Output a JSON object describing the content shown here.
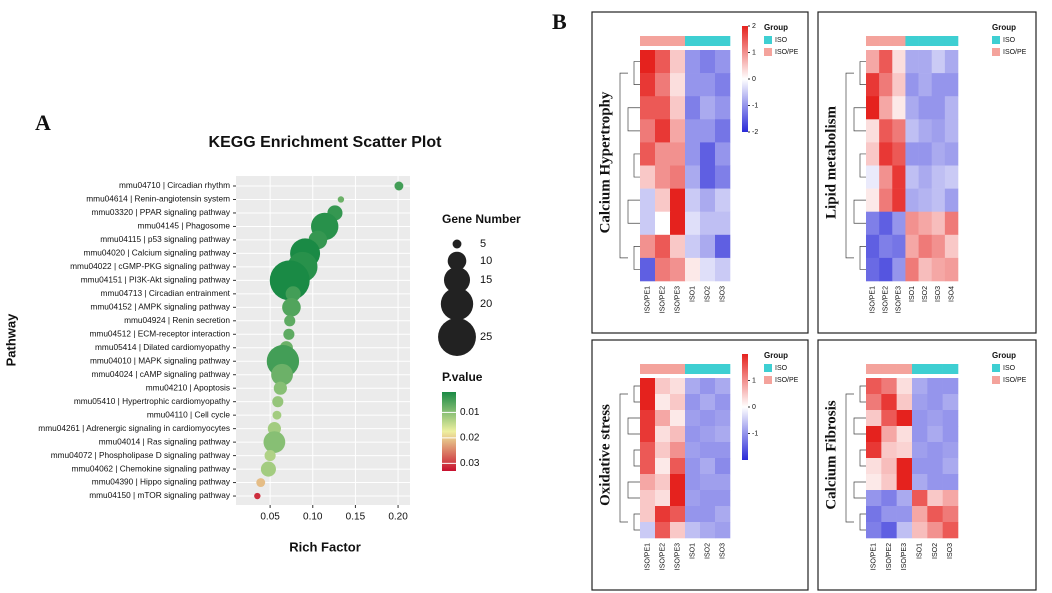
{
  "panel_labels": [
    "A",
    "B"
  ],
  "chart_data": [
    {
      "type": "scatter",
      "title": "KEGG Enrichment Scatter Plot",
      "x_label": "Rich Factor",
      "y_label": "Pathway",
      "categories": [
        "mmu04710 | Circadian rhythm",
        "mmu04614 | Renin-angiotensin system",
        "mmu03320 | PPAR signaling pathway",
        "mmu04145 | Phagosome",
        "mmu04115 | p53 signaling pathway",
        "mmu04020 | Calcium signaling pathway",
        "mmu04022 | cGMP-PKG signaling pathway",
        "mmu04151 | PI3K-Akt signaling pathway",
        "mmu04713 | Circadian entrainment",
        "mmu04152 | AMPK signaling pathway",
        "mmu04924 | Renin secretion",
        "mmu04512 | ECM-receptor interaction",
        "mmu05414 | Dilated cardiomyopathy",
        "mmu04010 | MAPK signaling pathway",
        "mmu04024 | cAMP signaling pathway",
        "mmu04210 | Apoptosis",
        "mmu05410 | Hypertrophic cardiomyopathy",
        "mmu04110 | Cell cycle",
        "mmu04261 | Adrenergic signaling in cardiomyocytes",
        "mmu04014 | Ras signaling pathway",
        "mmu04072 | Phospholipase D signaling pathway",
        "mmu04062 | Chemokine signaling pathway",
        "mmu04390 | Hippo signaling pathway",
        "mmu04150 | mTOR signaling pathway"
      ],
      "x": [
        0.201,
        0.133,
        0.126,
        0.114,
        0.106,
        0.091,
        0.088,
        0.073,
        0.077,
        0.075,
        0.073,
        0.072,
        0.069,
        0.065,
        0.064,
        0.062,
        0.059,
        0.058,
        0.055,
        0.055,
        0.05,
        0.048,
        0.039,
        0.035
      ],
      "sizes": [
        5,
        4,
        8,
        16,
        10,
        18,
        18,
        27,
        8,
        10,
        6,
        6,
        7,
        20,
        12,
        7,
        6,
        5,
        7,
        12,
        6,
        8,
        5,
        4
      ],
      "pvalues": [
        0.005,
        0.008,
        0.004,
        0.003,
        0.004,
        0.002,
        0.003,
        0.002,
        0.005,
        0.006,
        0.007,
        0.007,
        0.008,
        0.005,
        0.008,
        0.01,
        0.011,
        0.012,
        0.012,
        0.01,
        0.013,
        0.012,
        0.021,
        0.031
      ],
      "xlim": [
        0.01,
        0.214
      ],
      "xticks": [
        0.05,
        {
          "value": 0.1,
          "label": "0.10"
        },
        0.15,
        {
          "value": 0.2,
          "label": "0.20"
        }
      ],
      "size_title": "Gene Number",
      "size_ticks": [
        5,
        10,
        15,
        20,
        25
      ],
      "color_title": "P.value",
      "clim": [
        0.002,
        0.033
      ],
      "cticks": [
        0.01,
        0.02,
        0.03
      ],
      "colors": [
        "#1a8a45",
        "#eef0a0",
        "#c8102e"
      ],
      "point_color": "#222222",
      "grid": true
    },
    {
      "type": "heatmap",
      "title": "Calcium Hypertrophy",
      "group_title": "Group",
      "groups": [
        {
          "name": "ISO/PE",
          "color": "#f4a39c",
          "columns": [
            "ISO/PE1",
            "ISO/PE2",
            "ISO/PE3"
          ]
        },
        {
          "name": "ISO",
          "color": "#3ecfd2",
          "columns": [
            "ISO1",
            "ISO2",
            "ISO3"
          ]
        }
      ],
      "values": [
        [
          2,
          1.5,
          0.5,
          -1,
          -1.2,
          -1
        ],
        [
          1.8,
          1.2,
          0.3,
          -1,
          -1,
          -1.2
        ],
        [
          1.5,
          1.5,
          0.5,
          -1.2,
          -0.8,
          -1
        ],
        [
          1.2,
          1.8,
          0.8,
          -1,
          -1,
          -1.3
        ],
        [
          1.5,
          1,
          1,
          -1,
          -1.5,
          -1
        ],
        [
          0.5,
          1,
          1.2,
          -0.8,
          -1.5,
          -1.2
        ],
        [
          -0.5,
          0.5,
          2,
          -0.5,
          -0.8,
          -0.5
        ],
        [
          -0.5,
          0,
          2,
          -0.3,
          -0.6,
          -0.6
        ],
        [
          1,
          1.5,
          0.5,
          -0.5,
          -0.8,
          -1.5
        ],
        [
          -1.5,
          1.2,
          1,
          0.2,
          -0.3,
          -0.5
        ]
      ],
      "zlim": [
        -2,
        2
      ],
      "zticks": [
        2,
        1,
        0,
        -1,
        -2
      ],
      "colors": [
        "#2a2ad8",
        "#ffffff",
        "#e5221e"
      ]
    },
    {
      "type": "heatmap",
      "title": "Lipid metabolism",
      "group_title": "Group",
      "groups": [
        {
          "name": "ISO/PE",
          "color": "#f4a39c",
          "columns": [
            "ISO/PE1",
            "ISO/PE2",
            "ISO/PE3"
          ]
        },
        {
          "name": "ISO",
          "color": "#3ecfd2",
          "columns": [
            "ISO1",
            "ISO2",
            "ISO3",
            "ISO4"
          ]
        }
      ],
      "values": [
        [
          0.8,
          1.5,
          0.3,
          -0.8,
          -0.8,
          -0.5,
          -0.8
        ],
        [
          1.8,
          1.2,
          0.5,
          -1,
          -0.8,
          -1,
          -1
        ],
        [
          2,
          0.8,
          0.2,
          -0.8,
          -1,
          -1,
          -0.7
        ],
        [
          0.3,
          1.5,
          1.2,
          -0.6,
          -0.8,
          -0.9,
          -0.7
        ],
        [
          0.5,
          1.8,
          1.5,
          -1,
          -1,
          -0.8,
          -0.9
        ],
        [
          -0.2,
          1,
          1.8,
          -0.6,
          -0.8,
          -0.6,
          -0.5
        ],
        [
          0.2,
          1.2,
          1.8,
          -0.8,
          -0.7,
          -0.6,
          -0.9
        ],
        [
          -1.2,
          -1.5,
          -1,
          1,
          0.8,
          0.6,
          1.2
        ],
        [
          -1.5,
          -1.2,
          -1.3,
          0.8,
          1.2,
          1,
          0.5
        ],
        [
          -1.4,
          -1.6,
          -1,
          1.2,
          0.6,
          0.8,
          0.9
        ]
      ],
      "zlim": [
        -2,
        2
      ],
      "colors": [
        "#2a2ad8",
        "#ffffff",
        "#e5221e"
      ]
    },
    {
      "type": "heatmap",
      "title": "Oxidative stress",
      "group_title": "Group",
      "groups": [
        {
          "name": "ISO/PE",
          "color": "#f4a39c",
          "columns": [
            "ISO/PE1",
            "ISO/PE2",
            "ISO/PE3"
          ]
        },
        {
          "name": "ISO",
          "color": "#3ecfd2",
          "columns": [
            "ISO1",
            "ISO2",
            "ISO3"
          ]
        }
      ],
      "values": [
        [
          2,
          0.5,
          0.3,
          -0.8,
          -1,
          -0.8
        ],
        [
          2,
          0.2,
          0.5,
          -1,
          -0.8,
          -1
        ],
        [
          1.8,
          0.8,
          0.2,
          -0.9,
          -1,
          -0.9
        ],
        [
          1.8,
          0.3,
          0.6,
          -1,
          -0.9,
          -0.8
        ],
        [
          1.5,
          0.5,
          1,
          -0.9,
          -1,
          -1
        ],
        [
          1.5,
          0.2,
          1.5,
          -1,
          -0.8,
          -1.1
        ],
        [
          0.8,
          0.5,
          2,
          -1,
          -0.9,
          -0.9
        ],
        [
          0.5,
          0.3,
          2,
          -0.9,
          -1,
          -1
        ],
        [
          0.5,
          1.8,
          1.5,
          -1,
          -1,
          -0.8
        ],
        [
          -0.5,
          1.5,
          0.5,
          -0.6,
          -0.8,
          -0.9
        ]
      ],
      "zlim": [
        -2,
        2
      ],
      "zticks": [
        1,
        0,
        -1
      ],
      "colors": [
        "#2a2ad8",
        "#ffffff",
        "#e5221e"
      ]
    },
    {
      "type": "heatmap",
      "title": "Calcium Fibrosis",
      "group_title": "Group",
      "groups": [
        {
          "name": "ISO/PE",
          "color": "#f4a39c",
          "columns": [
            "ISO/PE1",
            "ISO/PE2",
            "ISO/PE3"
          ]
        },
        {
          "name": "ISO",
          "color": "#3ecfd2",
          "columns": [
            "ISO1",
            "ISO2",
            "ISO3"
          ]
        }
      ],
      "values": [
        [
          1.5,
          1.2,
          0.3,
          -0.8,
          -1,
          -1
        ],
        [
          1.2,
          1.8,
          0.5,
          -0.9,
          -1,
          -0.8
        ],
        [
          0.5,
          1.5,
          2,
          -1,
          -0.9,
          -1
        ],
        [
          2,
          0.8,
          0.3,
          -1,
          -0.8,
          -1
        ],
        [
          1.8,
          0.5,
          0.4,
          -0.9,
          -1,
          -0.9
        ],
        [
          0.3,
          0.6,
          2,
          -1,
          -1,
          -0.8
        ],
        [
          0.2,
          0.5,
          2,
          -0.8,
          -1,
          -1
        ],
        [
          -1,
          -1.2,
          -0.8,
          1.5,
          0.5,
          0.8
        ],
        [
          -1.3,
          -1,
          -1,
          0.8,
          1.5,
          1.2
        ],
        [
          -1.2,
          -1.5,
          -0.6,
          0.6,
          1,
          1.5
        ]
      ],
      "zlim": [
        -2,
        2
      ],
      "colors": [
        "#2a2ad8",
        "#ffffff",
        "#e5221e"
      ]
    }
  ]
}
